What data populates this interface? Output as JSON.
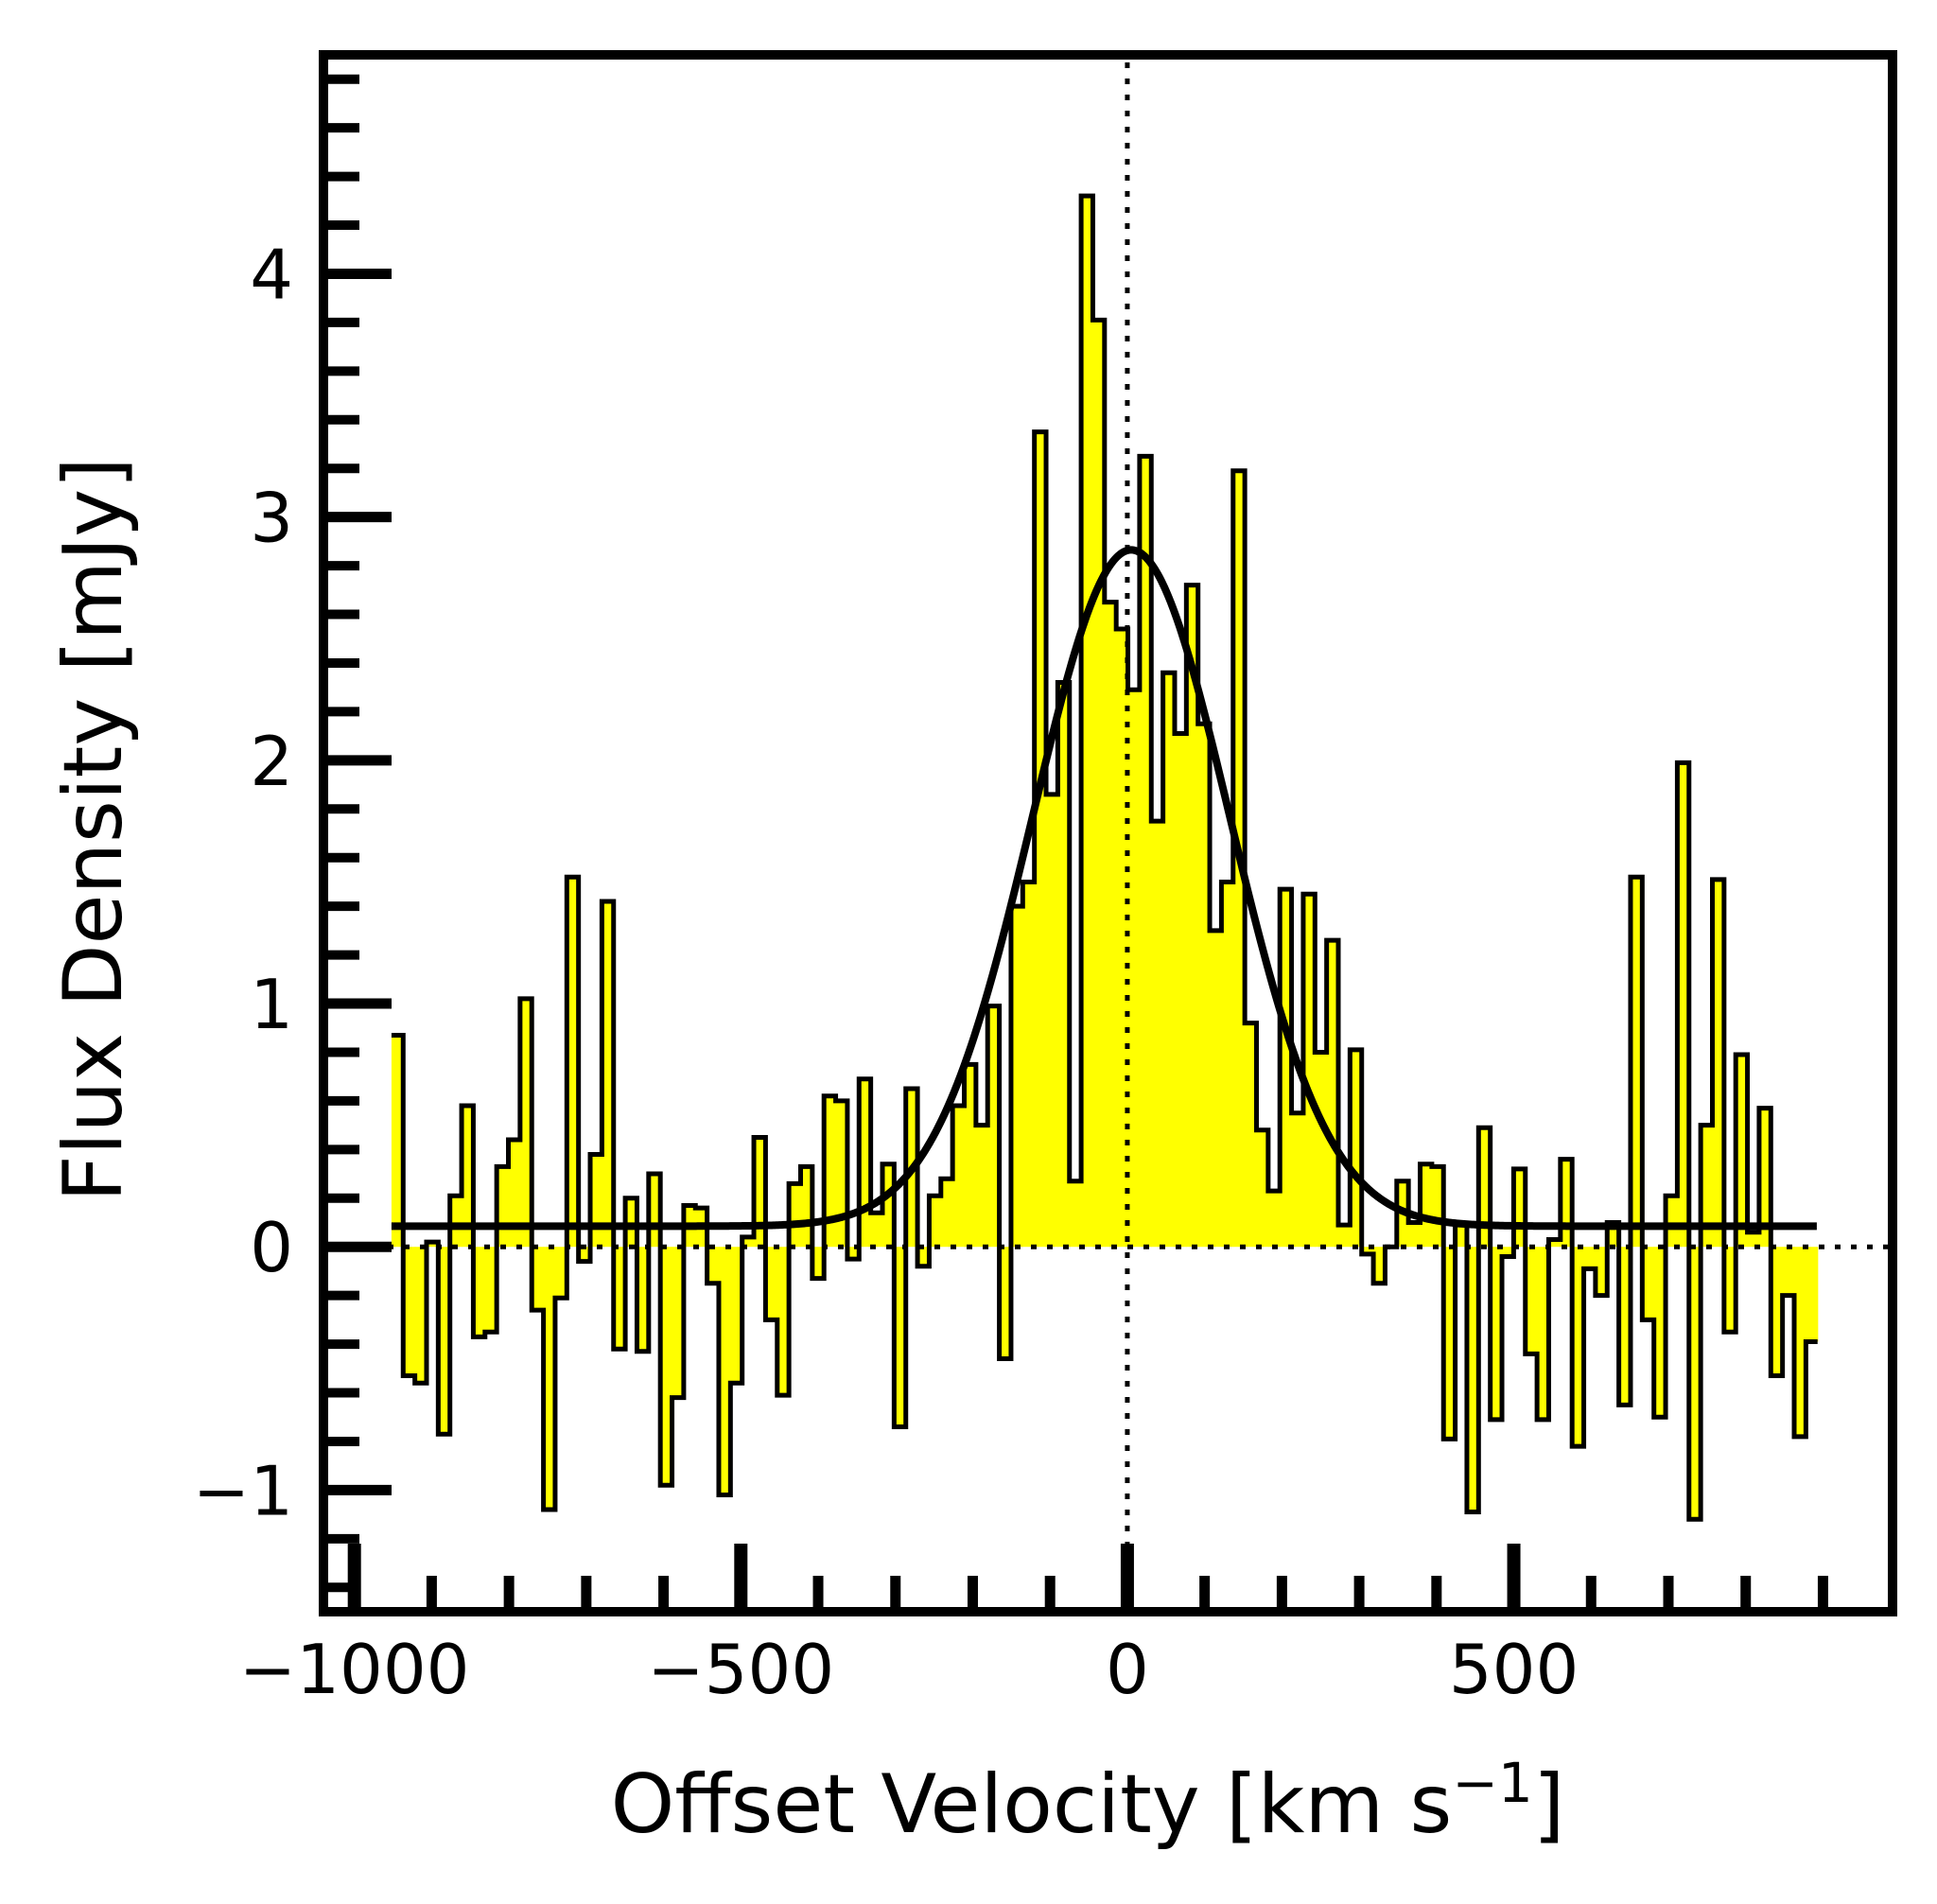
{
  "chart_data": {
    "type": "line",
    "title": "",
    "xlabel": "Offset Velocity [km s",
    "xlabel_sup": "−1",
    "xlabel_end": "]",
    "ylabel": "Flux Density [mJy]",
    "xlim": [
      -1040,
      990
    ],
    "ylim": [
      -1.5,
      4.9
    ],
    "xticks": [
      {
        "value": -1000,
        "label": "−1000"
      },
      {
        "value": -500,
        "label": "−500"
      },
      {
        "value": 0,
        "label": "0"
      },
      {
        "value": 500,
        "label": "500"
      }
    ],
    "yticks": [
      {
        "value": -1,
        "label": "−1"
      },
      {
        "value": 0,
        "label": "0"
      },
      {
        "value": 1,
        "label": "1"
      },
      {
        "value": 2,
        "label": "2"
      },
      {
        "value": 3,
        "label": "3"
      },
      {
        "value": 4,
        "label": "4"
      }
    ],
    "grid": false,
    "reference_lines": [
      {
        "axis": "x",
        "value": 0,
        "style": "dotted"
      },
      {
        "axis": "y",
        "value": 0,
        "style": "dotted"
      }
    ],
    "colors": {
      "fill": "#ffff00",
      "line": "#000000",
      "background": "#ffffff"
    },
    "series": [
      {
        "kind": "step-histogram",
        "bin_width": 15,
        "x_start": -952,
        "x_end": 893,
        "values": [
          0.87,
          -0.53,
          -0.56,
          0.02,
          -0.77,
          0.21,
          0.58,
          -0.37,
          -0.35,
          0.33,
          0.44,
          1.02,
          -0.26,
          -1.08,
          -0.21,
          1.52,
          -0.06,
          0.38,
          1.42,
          -0.42,
          0.2,
          -0.43,
          0.3,
          -0.98,
          -0.62,
          0.17,
          0.16,
          -0.15,
          -1.02,
          -0.56,
          0.04,
          0.45,
          -0.3,
          -0.61,
          0.26,
          0.33,
          -0.13,
          0.62,
          0.6,
          -0.05,
          0.69,
          0.14,
          0.34,
          -0.74,
          0.65,
          -0.08,
          0.21,
          0.28,
          0.58,
          0.75,
          0.5,
          0.99,
          -0.46,
          1.4,
          1.5,
          3.35,
          1.86,
          2.32,
          0.27,
          4.32,
          3.81,
          2.65,
          2.54,
          2.29,
          3.25,
          1.75,
          2.36,
          2.11,
          2.72,
          2.15,
          1.3,
          1.5,
          3.19,
          0.92,
          0.48,
          0.23,
          1.47,
          0.55,
          1.45,
          0.8,
          1.26,
          0.09,
          0.81,
          -0.03,
          -0.15,
          0.0,
          0.27,
          0.1,
          0.34,
          0.33,
          -0.79,
          0.09,
          -1.09,
          0.49,
          -0.71,
          -0.04,
          0.32,
          -0.44,
          -0.71,
          0.03,
          0.36,
          -0.82,
          -0.09,
          -0.2,
          0.1,
          -0.65,
          1.52,
          -0.3,
          -0.7,
          0.21,
          1.99,
          -1.12,
          0.5,
          1.51,
          -0.35,
          0.79,
          0.06,
          0.57,
          -0.53,
          -0.2,
          -0.78,
          -0.39
        ]
      },
      {
        "kind": "gaussian-fit",
        "amplitude": 2.78,
        "center": 5,
        "fwhm": 300,
        "baseline": 0.085,
        "x_range": [
          -952,
          893
        ]
      }
    ]
  }
}
